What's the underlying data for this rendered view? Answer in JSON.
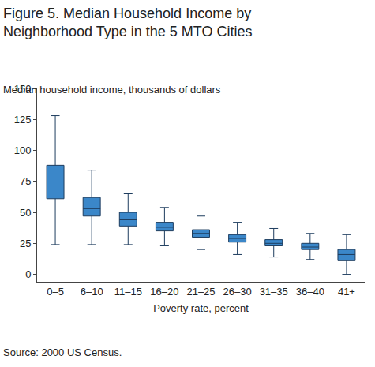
{
  "chart_data": {
    "type": "box",
    "title": "Figure 5. Median Household Income by Neighborhood Type in the 5 MTO Cities",
    "subtitle": "Median household income, thousands of dollars",
    "x_label": "Poverty rate, percent",
    "source": "Source: 2000 US Census.",
    "categories": [
      "0–5",
      "6–10",
      "11–15",
      "16–20",
      "21–25",
      "26–30",
      "31–35",
      "36–40",
      "41+"
    ],
    "min": [
      24,
      24,
      24,
      23,
      20,
      16,
      14,
      12,
      0
    ],
    "q1": [
      61,
      47,
      39,
      35,
      30,
      26,
      23,
      20,
      11
    ],
    "median": [
      72,
      53,
      44,
      38,
      33,
      29,
      25,
      22,
      16
    ],
    "q3": [
      88,
      62,
      50,
      42,
      36,
      32,
      28,
      25,
      20
    ],
    "max": [
      128,
      84,
      65,
      54,
      47,
      42,
      37,
      33,
      32
    ],
    "color": "#3b87c9",
    "ylim": [
      -6,
      150
    ],
    "yticks": [
      0,
      25,
      50,
      75,
      100,
      125,
      150
    ],
    "grid": false
  }
}
